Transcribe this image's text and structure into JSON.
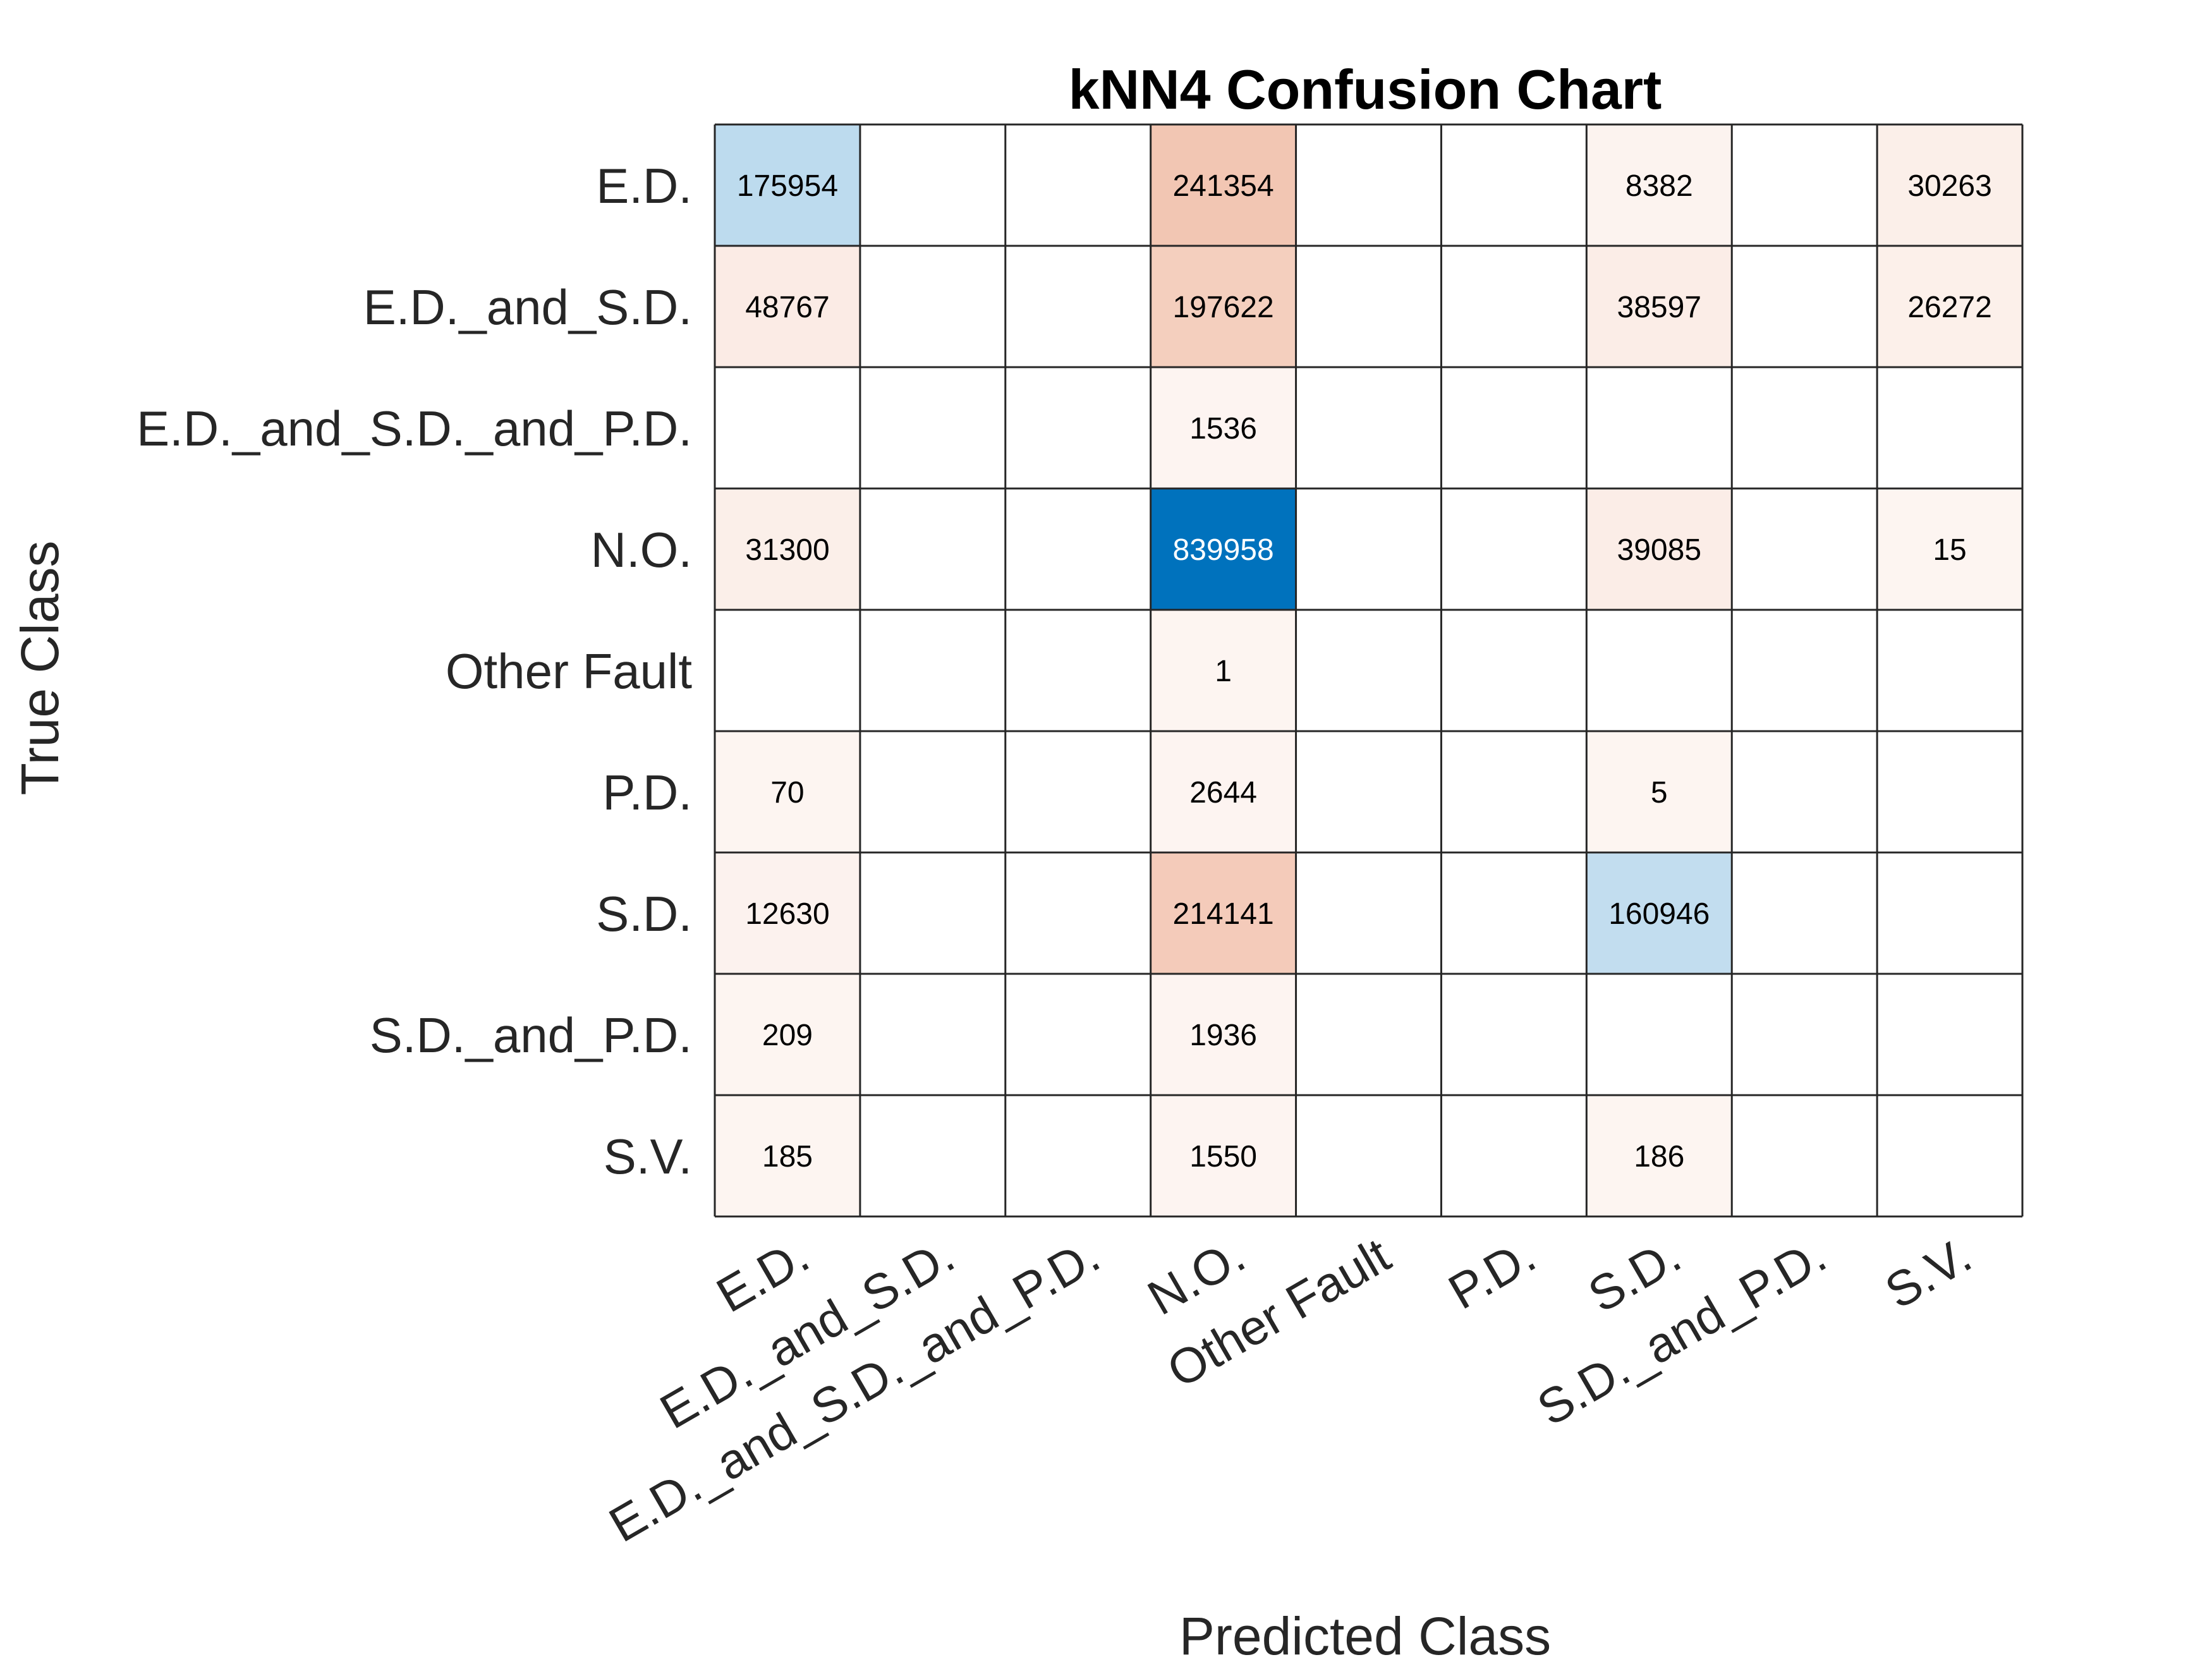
{
  "chart_data": {
    "type": "heatmap",
    "title": "kNN4 Confusion Chart",
    "xlabel": "Predicted Class",
    "ylabel": "True Class",
    "classes": [
      "E.D.",
      "E.D._and_S.D.",
      "E.D._and_S.D._and_P.D.",
      "N.O.",
      "Other Fault",
      "P.D.",
      "S.D.",
      "S.D._and_P.D.",
      "S.V."
    ],
    "matrix": [
      [
        175954,
        null,
        null,
        241354,
        null,
        null,
        8382,
        null,
        30263
      ],
      [
        48767,
        null,
        null,
        197622,
        null,
        null,
        38597,
        null,
        26272
      ],
      [
        null,
        null,
        null,
        1536,
        null,
        null,
        null,
        null,
        null
      ],
      [
        31300,
        null,
        null,
        839958,
        null,
        null,
        39085,
        null,
        15
      ],
      [
        null,
        null,
        null,
        1,
        null,
        null,
        null,
        null,
        null
      ],
      [
        70,
        null,
        null,
        2644,
        null,
        null,
        5,
        null,
        null
      ],
      [
        12630,
        null,
        null,
        214141,
        null,
        null,
        160946,
        null,
        null
      ],
      [
        209,
        null,
        null,
        1936,
        null,
        null,
        null,
        null,
        null
      ],
      [
        185,
        null,
        null,
        1550,
        null,
        null,
        186,
        null,
        null
      ]
    ],
    "colors": {
      "diagonal": "#0072BD",
      "off_diagonal": "#D95319",
      "grid": "#262626"
    }
  }
}
